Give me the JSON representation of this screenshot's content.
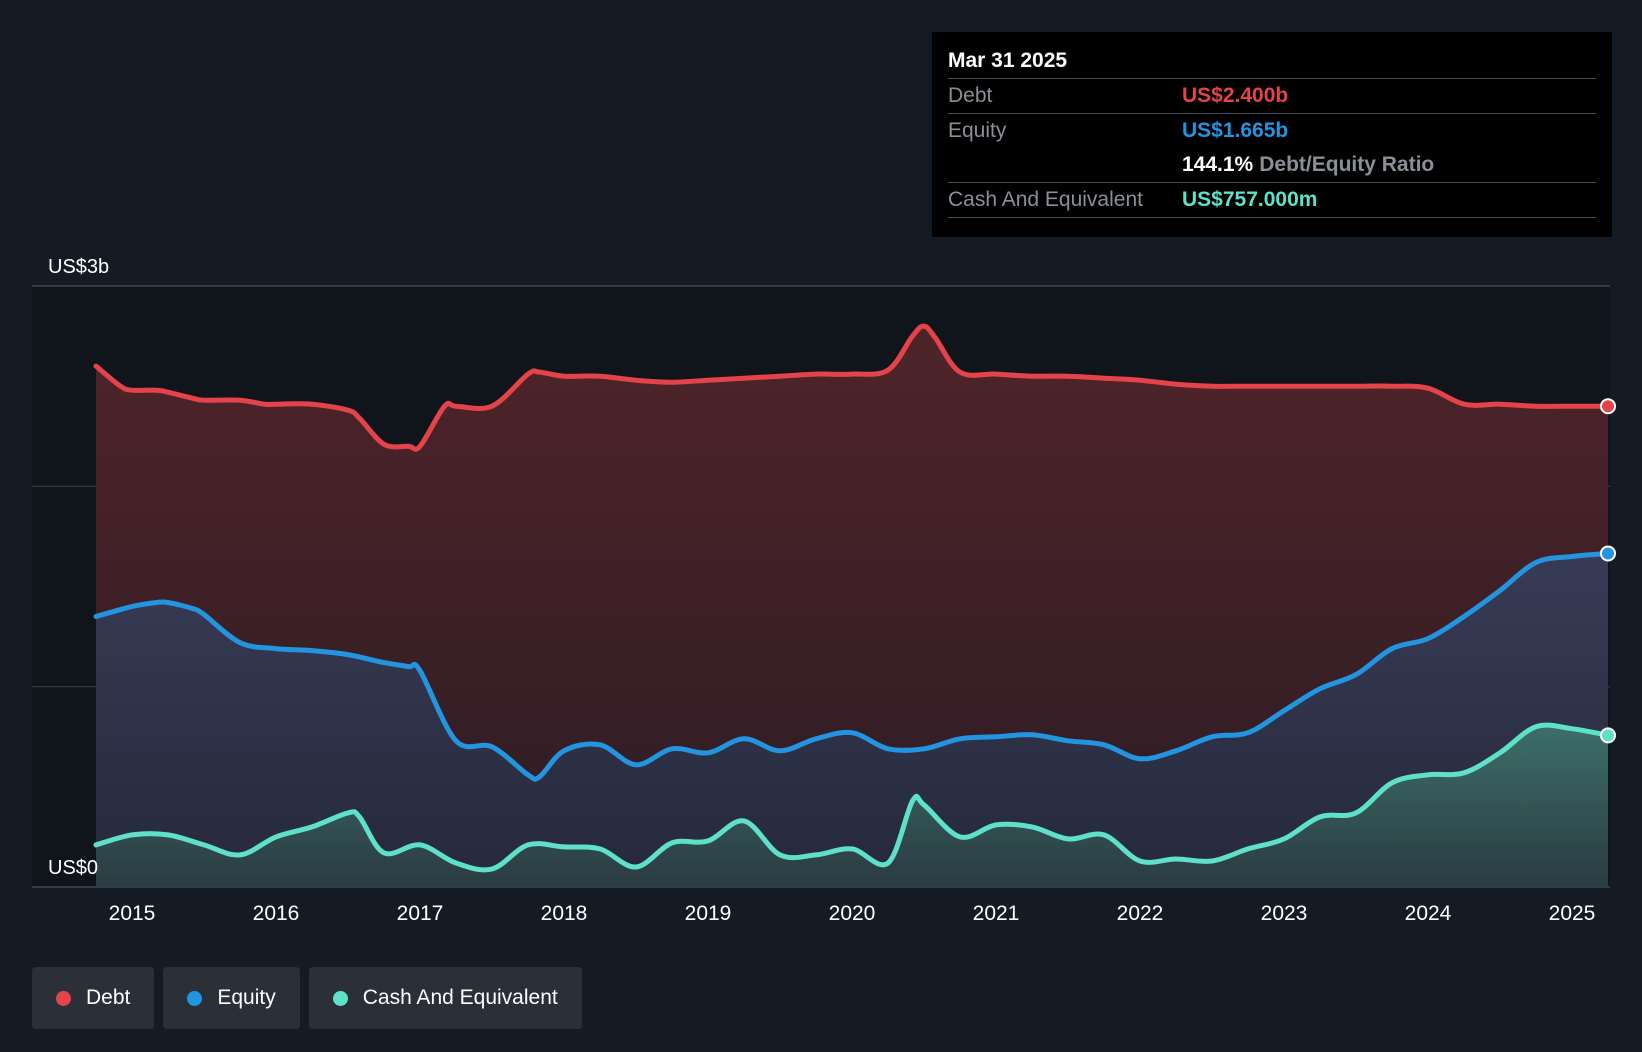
{
  "colors": {
    "debt": "#e5434a",
    "equity": "#2394df",
    "cash": "#5fe0c8",
    "background": "#151b24",
    "plot_bg": "#10151c",
    "grid": "#363b43",
    "text": "#ffffff"
  },
  "tooltip": {
    "date": "Mar 31 2025",
    "debt_label": "Debt",
    "debt_value": "US$2.400b",
    "equity_label": "Equity",
    "equity_value": "US$1.665b",
    "ratio_value": "144.1%",
    "ratio_label": "Debt/Equity Ratio",
    "cash_label": "Cash And Equivalent",
    "cash_value": "US$757.000m"
  },
  "legend": [
    {
      "label": "Debt",
      "color": "#e5434a"
    },
    {
      "label": "Equity",
      "color": "#2394df"
    },
    {
      "label": "Cash And Equivalent",
      "color": "#5fe0c8"
    }
  ],
  "chart_data": {
    "type": "area",
    "title": "",
    "xlabel": "",
    "ylabel": "",
    "y_unit": "US$ billions",
    "ylim": [
      0,
      3
    ],
    "xlim": [
      2014.6,
      2025.25
    ],
    "y_tick_labels": [
      {
        "value": 3,
        "label": "US$3b"
      },
      {
        "value": 0,
        "label": "US$0"
      }
    ],
    "gridlines": [
      0,
      1,
      2,
      3
    ],
    "x_ticks": [
      2015,
      2016,
      2017,
      2018,
      2019,
      2020,
      2021,
      2022,
      2023,
      2024,
      2025
    ],
    "x_tick_labels": [
      "2015",
      "2016",
      "2017",
      "2018",
      "2019",
      "2020",
      "2021",
      "2022",
      "2023",
      "2024",
      "2025"
    ],
    "series": [
      {
        "name": "Debt",
        "key": "debt",
        "x": [
          2014.75,
          2014.92,
          2015.0,
          2015.17,
          2015.25,
          2015.42,
          2015.5,
          2015.75,
          2015.92,
          2016.0,
          2016.25,
          2016.5,
          2016.58,
          2016.75,
          2016.92,
          2017.0,
          2017.17,
          2017.25,
          2017.5,
          2017.75,
          2017.83,
          2018.0,
          2018.25,
          2018.5,
          2018.75,
          2019.0,
          2019.25,
          2019.5,
          2019.75,
          2020.0,
          2020.25,
          2020.42,
          2020.5,
          2020.58,
          2020.75,
          2021.0,
          2021.25,
          2021.5,
          2021.75,
          2022.0,
          2022.25,
          2022.5,
          2022.75,
          2023.0,
          2023.25,
          2023.5,
          2023.75,
          2024.0,
          2024.25,
          2024.5,
          2024.75,
          2025.0,
          2025.25
        ],
        "values": [
          2.6,
          2.5,
          2.48,
          2.48,
          2.47,
          2.44,
          2.43,
          2.43,
          2.41,
          2.41,
          2.41,
          2.38,
          2.34,
          2.21,
          2.2,
          2.2,
          2.4,
          2.4,
          2.4,
          2.56,
          2.57,
          2.55,
          2.55,
          2.53,
          2.52,
          2.53,
          2.54,
          2.55,
          2.56,
          2.56,
          2.58,
          2.75,
          2.8,
          2.74,
          2.57,
          2.56,
          2.55,
          2.55,
          2.54,
          2.53,
          2.51,
          2.5,
          2.5,
          2.5,
          2.5,
          2.5,
          2.5,
          2.49,
          2.41,
          2.41,
          2.4,
          2.4,
          2.4
        ]
      },
      {
        "name": "Equity",
        "key": "equity",
        "x": [
          2014.75,
          2015.0,
          2015.17,
          2015.25,
          2015.42,
          2015.5,
          2015.75,
          2016.0,
          2016.25,
          2016.5,
          2016.75,
          2016.92,
          2017.0,
          2017.25,
          2017.5,
          2017.75,
          2017.83,
          2018.0,
          2018.25,
          2018.5,
          2018.75,
          2019.0,
          2019.25,
          2019.5,
          2019.75,
          2020.0,
          2020.25,
          2020.5,
          2020.75,
          2021.0,
          2021.25,
          2021.5,
          2021.75,
          2022.0,
          2022.25,
          2022.5,
          2022.75,
          2023.0,
          2023.25,
          2023.5,
          2023.75,
          2024.0,
          2024.25,
          2024.5,
          2024.75,
          2025.0,
          2025.25
        ],
        "values": [
          1.35,
          1.4,
          1.42,
          1.42,
          1.39,
          1.36,
          1.22,
          1.19,
          1.18,
          1.16,
          1.12,
          1.1,
          1.08,
          0.73,
          0.7,
          0.56,
          0.55,
          0.68,
          0.71,
          0.61,
          0.69,
          0.67,
          0.74,
          0.68,
          0.74,
          0.77,
          0.69,
          0.69,
          0.74,
          0.75,
          0.76,
          0.73,
          0.71,
          0.64,
          0.68,
          0.75,
          0.77,
          0.88,
          0.99,
          1.06,
          1.19,
          1.24,
          1.35,
          1.48,
          1.62,
          1.65,
          1.665
        ]
      },
      {
        "name": "Cash And Equivalent",
        "key": "cash",
        "x": [
          2014.75,
          2015.0,
          2015.25,
          2015.5,
          2015.75,
          2016.0,
          2016.25,
          2016.5,
          2016.58,
          2016.75,
          2017.0,
          2017.25,
          2017.5,
          2017.75,
          2018.0,
          2018.25,
          2018.5,
          2018.75,
          2019.0,
          2019.25,
          2019.5,
          2019.75,
          2020.0,
          2020.25,
          2020.42,
          2020.5,
          2020.75,
          2021.0,
          2021.25,
          2021.5,
          2021.75,
          2022.0,
          2022.25,
          2022.5,
          2022.75,
          2023.0,
          2023.25,
          2023.5,
          2023.75,
          2024.0,
          2024.25,
          2024.5,
          2024.75,
          2025.0,
          2025.25
        ],
        "values": [
          0.21,
          0.26,
          0.26,
          0.21,
          0.16,
          0.25,
          0.3,
          0.37,
          0.35,
          0.17,
          0.21,
          0.12,
          0.09,
          0.21,
          0.2,
          0.19,
          0.1,
          0.22,
          0.23,
          0.33,
          0.16,
          0.16,
          0.19,
          0.12,
          0.43,
          0.41,
          0.25,
          0.31,
          0.3,
          0.24,
          0.26,
          0.13,
          0.14,
          0.13,
          0.19,
          0.24,
          0.35,
          0.37,
          0.52,
          0.56,
          0.57,
          0.67,
          0.8,
          0.79,
          0.757
        ]
      }
    ]
  }
}
